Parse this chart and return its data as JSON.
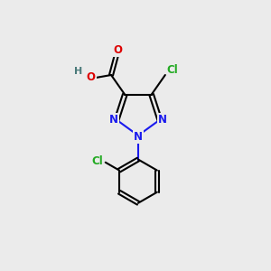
{
  "bg_color": "#ebebeb",
  "atom_colors": {
    "C": "#000000",
    "N": "#1a1aee",
    "O": "#dd0000",
    "Cl": "#22aa22",
    "H": "#4a7a7a"
  },
  "bond_color": "#000000",
  "bond_width": 1.5,
  "figsize": [
    3.0,
    3.0
  ],
  "dpi": 100,
  "xlim": [
    0,
    10
  ],
  "ylim": [
    0,
    10
  ]
}
